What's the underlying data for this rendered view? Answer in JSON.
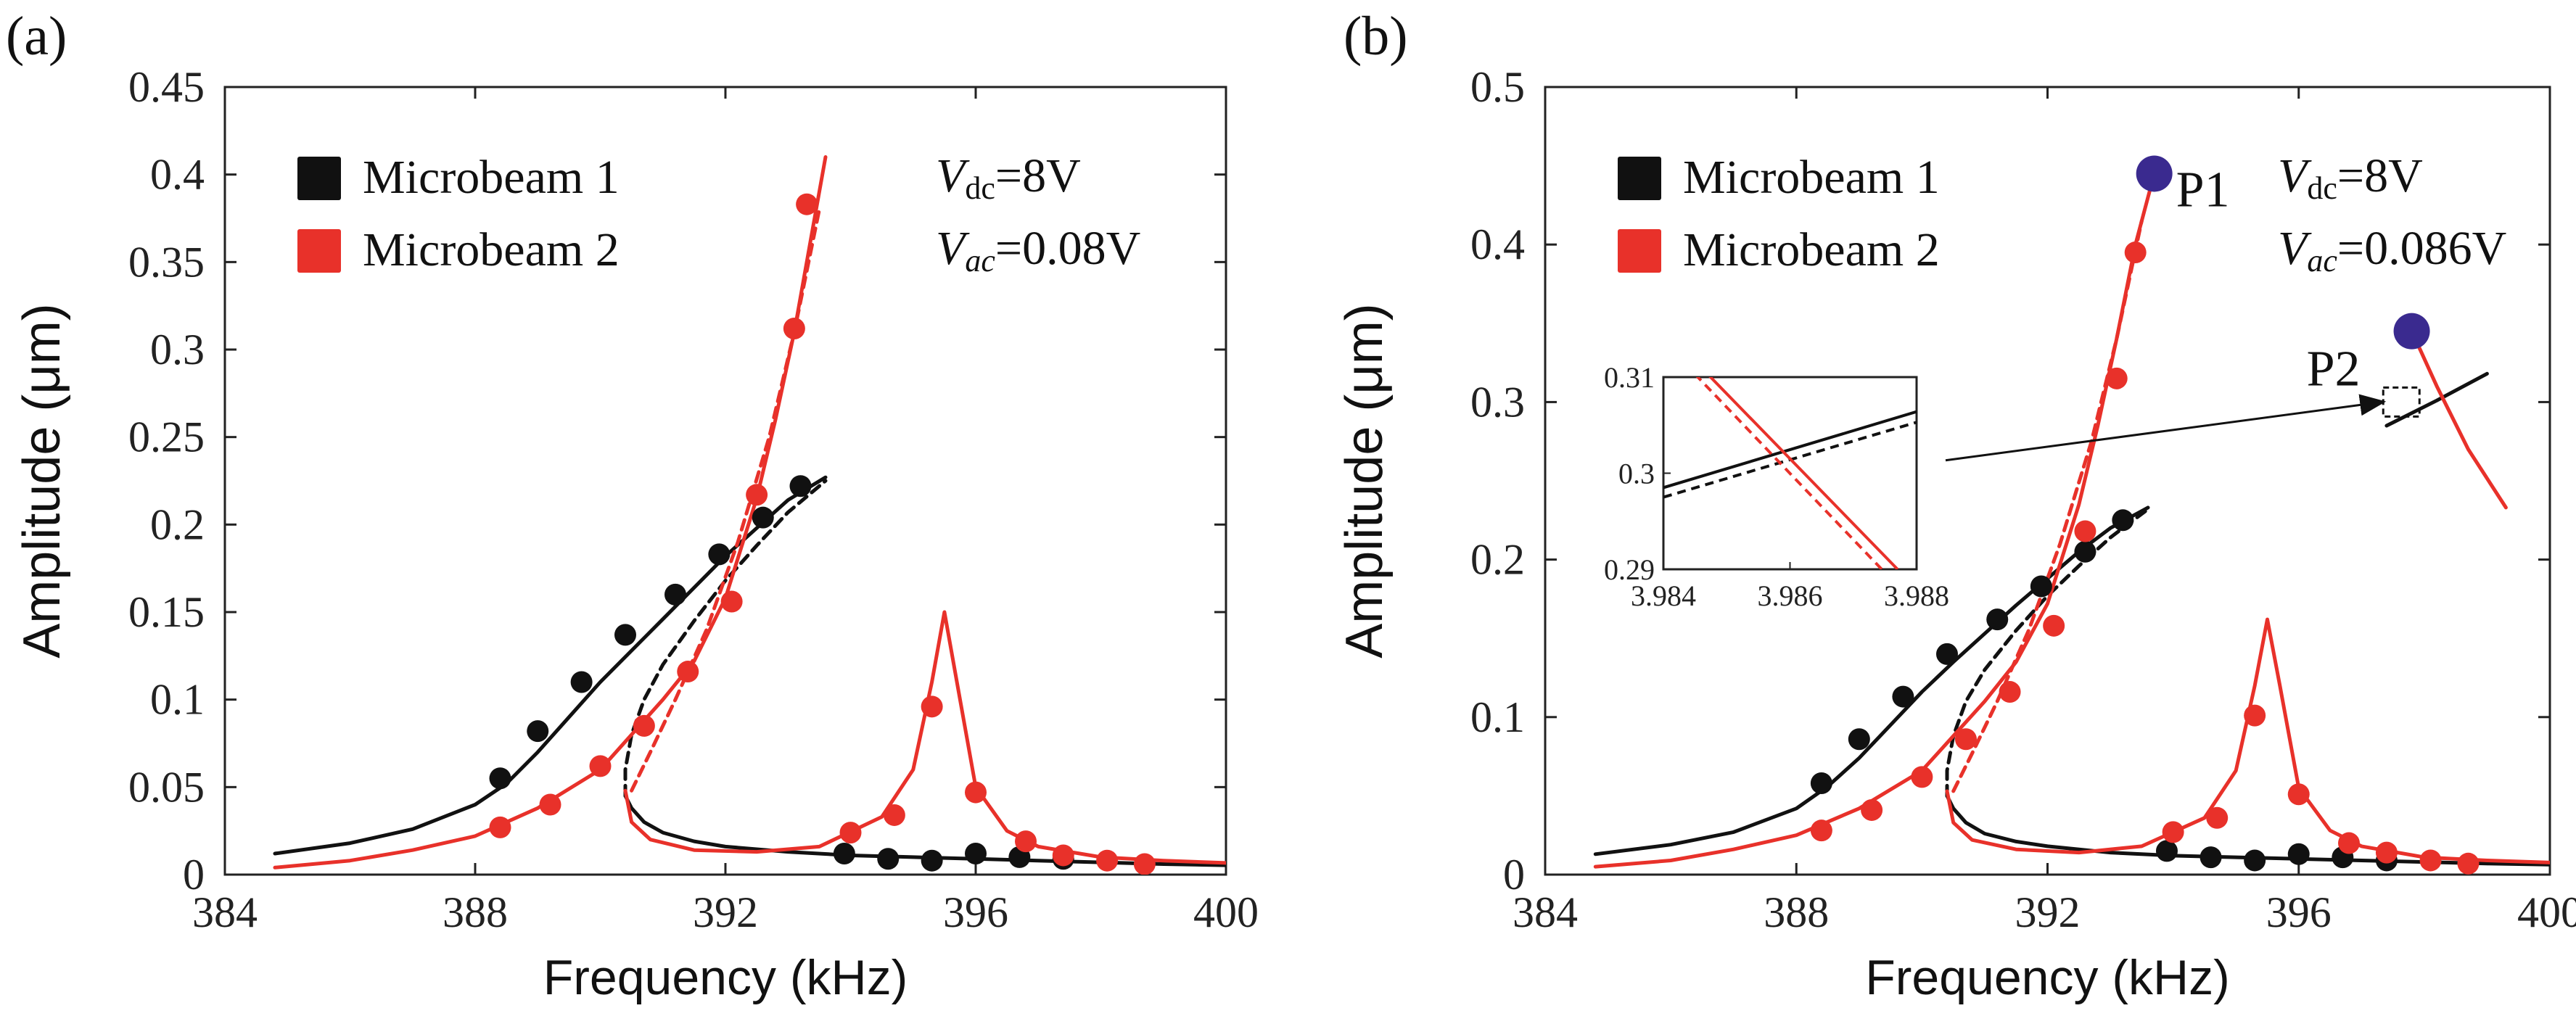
{
  "chart_data": [
    {
      "panel_label": "(a)",
      "type": "line",
      "xlabel": "Frequency (kHz)",
      "ylabel": "Amplitude (μm)",
      "xlim": [
        384,
        400
      ],
      "ylim": [
        0,
        0.45
      ],
      "xticks": [
        384,
        388,
        392,
        396,
        400
      ],
      "yticks": [
        0,
        0.05,
        0.1,
        0.15,
        0.2,
        0.25,
        0.3,
        0.35,
        0.4,
        0.45
      ],
      "xtick_labels": [
        "384",
        "388",
        "392",
        "396",
        "400"
      ],
      "ytick_labels": [
        "0",
        "0.05",
        "0.1",
        "0.15",
        "0.2",
        "0.25",
        "0.3",
        "0.35",
        "0.4",
        "0.45"
      ],
      "legend": [
        {
          "label": "Microbeam 1",
          "color": "#111111"
        },
        {
          "label": "Microbeam 2",
          "color": "#e8312a"
        }
      ],
      "params": {
        "vdc": "=8V",
        "vac": "=0.08V"
      },
      "series": [
        {
          "name": "Microbeam 1 (solid)",
          "color": "#111111",
          "dash": false,
          "x": [
            384.8,
            386,
            387,
            388,
            388.5,
            389,
            389.5,
            390,
            390.5,
            391,
            391.5,
            392,
            392.5,
            393,
            393.6
          ],
          "y": [
            0.012,
            0.018,
            0.026,
            0.04,
            0.052,
            0.07,
            0.09,
            0.11,
            0.128,
            0.146,
            0.164,
            0.182,
            0.198,
            0.214,
            0.227
          ]
        },
        {
          "name": "Microbeam 1 (dashed)",
          "color": "#111111",
          "dash": true,
          "x": [
            390.4,
            390.4,
            390.5,
            390.7,
            391,
            391.5,
            392,
            392.5,
            393,
            393.6
          ],
          "y": [
            0.045,
            0.06,
            0.08,
            0.1,
            0.12,
            0.145,
            0.168,
            0.188,
            0.207,
            0.225
          ]
        },
        {
          "name": "Microbeam 1 (lower)",
          "color": "#111111",
          "dash": false,
          "x": [
            390.4,
            390.5,
            390.7,
            391,
            391.5,
            392,
            393,
            394,
            395,
            396,
            397,
            398,
            399,
            400.5
          ],
          "y": [
            0.045,
            0.038,
            0.03,
            0.024,
            0.019,
            0.016,
            0.013,
            0.011,
            0.01,
            0.009,
            0.008,
            0.007,
            0.006,
            0.005
          ]
        },
        {
          "name": "Microbeam 2 (upper)",
          "color": "#e8312a",
          "dash": false,
          "x": [
            384.8,
            386,
            387,
            388,
            389,
            390,
            391,
            391.5,
            392,
            392.5,
            392.8,
            393.1,
            393.4,
            393.6
          ],
          "y": [
            0.004,
            0.008,
            0.014,
            0.022,
            0.038,
            0.06,
            0.1,
            0.122,
            0.158,
            0.215,
            0.26,
            0.31,
            0.37,
            0.41
          ]
        },
        {
          "name": "Microbeam 2 (dashed)",
          "color": "#e8312a",
          "dash": true,
          "x": [
            390.5,
            390.8,
            391.2,
            391.7,
            392.2,
            392.7,
            393.1,
            393.5
          ],
          "y": [
            0.048,
            0.07,
            0.1,
            0.14,
            0.19,
            0.25,
            0.31,
            0.38
          ]
        },
        {
          "name": "Microbeam 2 (lower)",
          "color": "#e8312a",
          "dash": false,
          "x": [
            390.4,
            390.5,
            390.8,
            391.5,
            392.5,
            393.5,
            394.5,
            395,
            395.3,
            395.5,
            395.7,
            396,
            396.5,
            397,
            398,
            399,
            400.5
          ],
          "y": [
            0.048,
            0.03,
            0.02,
            0.014,
            0.013,
            0.016,
            0.033,
            0.06,
            0.11,
            0.15,
            0.11,
            0.05,
            0.025,
            0.016,
            0.01,
            0.008,
            0.006
          ]
        }
      ],
      "markers": [
        {
          "series": "Microbeam 1",
          "color": "#111111",
          "points": [
            [
              388.4,
              0.055
            ],
            [
              389,
              0.082
            ],
            [
              389.7,
              0.11
            ],
            [
              390.4,
              0.137
            ],
            [
              391.2,
              0.16
            ],
            [
              391.9,
              0.183
            ],
            [
              392.6,
              0.204
            ],
            [
              393.2,
              0.222
            ],
            [
              393.9,
              0.012
            ],
            [
              394.6,
              0.009
            ],
            [
              395.3,
              0.008
            ],
            [
              396,
              0.012
            ],
            [
              396.7,
              0.01
            ],
            [
              397.4,
              0.009
            ]
          ]
        },
        {
          "series": "Microbeam 2",
          "color": "#e8312a",
          "points": [
            [
              388.4,
              0.027
            ],
            [
              389.2,
              0.04
            ],
            [
              390,
              0.062
            ],
            [
              390.7,
              0.085
            ],
            [
              391.4,
              0.116
            ],
            [
              392.1,
              0.156
            ],
            [
              392.5,
              0.217
            ],
            [
              393.1,
              0.312
            ],
            [
              393.3,
              0.383
            ],
            [
              394,
              0.024
            ],
            [
              394.7,
              0.034
            ],
            [
              395.3,
              0.096
            ],
            [
              396,
              0.047
            ],
            [
              396.8,
              0.019
            ],
            [
              397.4,
              0.011
            ],
            [
              398.1,
              0.008
            ],
            [
              398.7,
              0.006
            ]
          ]
        }
      ]
    },
    {
      "panel_label": "(b)",
      "type": "line",
      "xlabel": "Frequency (kHz)",
      "ylabel": "Amplitude (μm)",
      "xlim": [
        384,
        400
      ],
      "ylim": [
        0,
        0.5
      ],
      "xticks": [
        384,
        388,
        392,
        396,
        400
      ],
      "yticks": [
        0,
        0.1,
        0.2,
        0.3,
        0.4,
        0.5
      ],
      "xtick_labels": [
        "384",
        "388",
        "392",
        "396",
        "400"
      ],
      "ytick_labels": [
        "0",
        "0.1",
        "0.2",
        "0.3",
        "0.4",
        "0.5"
      ],
      "legend": [
        {
          "label": "Microbeam 1",
          "color": "#111111"
        },
        {
          "label": "Microbeam 2",
          "color": "#e8312a"
        }
      ],
      "params": {
        "vdc": "=8V",
        "vac": "=0.086V"
      },
      "annotations": [
        {
          "label": "P1",
          "x": 393.7,
          "y": 0.445,
          "color": "#3a2a8f"
        },
        {
          "label": "P2",
          "x": 397.8,
          "y": 0.345,
          "color": "#3a2a8f"
        }
      ],
      "series": [
        {
          "name": "Microbeam 1 (solid)",
          "color": "#111111",
          "dash": false,
          "x": [
            384.8,
            386,
            387,
            388,
            388.5,
            389,
            389.5,
            390,
            390.5,
            391,
            391.5,
            392,
            392.5,
            393,
            393.6
          ],
          "y": [
            0.013,
            0.019,
            0.027,
            0.042,
            0.056,
            0.074,
            0.095,
            0.116,
            0.135,
            0.153,
            0.171,
            0.188,
            0.205,
            0.22,
            0.233
          ]
        },
        {
          "name": "Microbeam 1 (dashed)",
          "color": "#111111",
          "dash": true,
          "x": [
            390.4,
            390.4,
            390.5,
            390.7,
            391,
            391.5,
            392,
            392.5,
            393,
            393.6
          ],
          "y": [
            0.05,
            0.066,
            0.088,
            0.11,
            0.13,
            0.155,
            0.177,
            0.196,
            0.214,
            0.232
          ]
        },
        {
          "name": "Microbeam 1 (lower)",
          "color": "#111111",
          "dash": false,
          "x": [
            390.4,
            390.5,
            390.7,
            391,
            391.5,
            392,
            393,
            394,
            395,
            396,
            397,
            398,
            399,
            400.5
          ],
          "y": [
            0.05,
            0.042,
            0.033,
            0.026,
            0.021,
            0.018,
            0.014,
            0.012,
            0.011,
            0.01,
            0.009,
            0.008,
            0.007,
            0.006
          ]
        },
        {
          "name": "Microbeam 1 (upper branch)",
          "color": "#111111",
          "dash": false,
          "x": [
            397.4,
            398.2,
            399
          ],
          "y": [
            0.285,
            0.301,
            0.318
          ]
        },
        {
          "name": "Microbeam 2 (upper)",
          "color": "#e8312a",
          "dash": false,
          "x": [
            384.8,
            386,
            387,
            388,
            389,
            390,
            391,
            391.5,
            392,
            392.5,
            392.8,
            393.1,
            393.4,
            393.6,
            393.7
          ],
          "y": [
            0.005,
            0.009,
            0.016,
            0.025,
            0.042,
            0.066,
            0.11,
            0.135,
            0.172,
            0.235,
            0.285,
            0.34,
            0.4,
            0.43,
            0.445
          ]
        },
        {
          "name": "Microbeam 2 (dashed)",
          "color": "#e8312a",
          "dash": true,
          "x": [
            390.5,
            390.8,
            391.2,
            391.7,
            392.2,
            392.7,
            393.1,
            393.5
          ],
          "y": [
            0.053,
            0.077,
            0.11,
            0.155,
            0.21,
            0.275,
            0.34,
            0.415
          ]
        },
        {
          "name": "Microbeam 2 (lower)",
          "color": "#e8312a",
          "dash": false,
          "x": [
            390.4,
            390.5,
            390.8,
            391.5,
            392.5,
            393.5,
            394.5,
            395,
            395.3,
            395.5,
            395.7,
            396,
            396.5,
            397,
            398,
            399,
            400.5
          ],
          "y": [
            0.053,
            0.033,
            0.022,
            0.016,
            0.014,
            0.018,
            0.036,
            0.066,
            0.12,
            0.162,
            0.12,
            0.055,
            0.028,
            0.018,
            0.011,
            0.009,
            0.007
          ]
        },
        {
          "name": "Microbeam 2 (upper branch)",
          "color": "#e8312a",
          "dash": false,
          "x": [
            397.8,
            398.2,
            398.7,
            399.3
          ],
          "y": [
            0.345,
            0.31,
            0.27,
            0.233
          ]
        }
      ],
      "markers": [
        {
          "series": "Microbeam 1",
          "color": "#111111",
          "points": [
            [
              388.4,
              0.058
            ],
            [
              389,
              0.086
            ],
            [
              389.7,
              0.113
            ],
            [
              390.4,
              0.14
            ],
            [
              391.2,
              0.162
            ],
            [
              391.9,
              0.183
            ],
            [
              392.6,
              0.205
            ],
            [
              393.2,
              0.225
            ],
            [
              393.9,
              0.015
            ],
            [
              394.6,
              0.011
            ],
            [
              395.3,
              0.009
            ],
            [
              396,
              0.013
            ],
            [
              396.7,
              0.011
            ],
            [
              397.4,
              0.009
            ]
          ]
        },
        {
          "series": "Microbeam 2",
          "color": "#e8312a",
          "points": [
            [
              388.4,
              0.028
            ],
            [
              389.2,
              0.041
            ],
            [
              390,
              0.062
            ],
            [
              390.7,
              0.086
            ],
            [
              391.4,
              0.116
            ],
            [
              392.1,
              0.158
            ],
            [
              392.6,
              0.218
            ],
            [
              393.1,
              0.315
            ],
            [
              393.4,
              0.395
            ],
            [
              394,
              0.027
            ],
            [
              394.7,
              0.036
            ],
            [
              395.3,
              0.101
            ],
            [
              396,
              0.051
            ],
            [
              396.8,
              0.02
            ],
            [
              397.4,
              0.014
            ],
            [
              398.1,
              0.009
            ],
            [
              398.7,
              0.007
            ]
          ]
        }
      ],
      "inset": {
        "xlim": [
          3.984,
          3.988
        ],
        "ylim": [
          0.29,
          0.31
        ],
        "xtick_labels": [
          "3.984",
          "3.986",
          "3.988"
        ],
        "ytick_labels": [
          "0.29",
          "0.3",
          "0.31"
        ],
        "series": [
          {
            "name": "Microbeam 1 inset (solid)",
            "color": "#111111",
            "dash": false,
            "x": [
              3.984,
              3.988
            ],
            "y": [
              0.2985,
              0.3064
            ]
          },
          {
            "name": "Microbeam 1 inset (dashed)",
            "color": "#111111",
            "dash": true,
            "x": [
              3.984,
              3.988
            ],
            "y": [
              0.2975,
              0.3053
            ]
          },
          {
            "name": "Microbeam 2 inset (solid)",
            "color": "#e8312a",
            "dash": false,
            "x": [
              3.9847,
              3.9877
            ],
            "y": [
              0.3103,
              0.29
            ]
          },
          {
            "name": "Microbeam 2 inset (dashed)",
            "color": "#e8312a",
            "dash": true,
            "x": [
              3.9845,
              3.98745
            ],
            "y": [
              0.3103,
              0.29
            ]
          }
        ]
      }
    }
  ]
}
